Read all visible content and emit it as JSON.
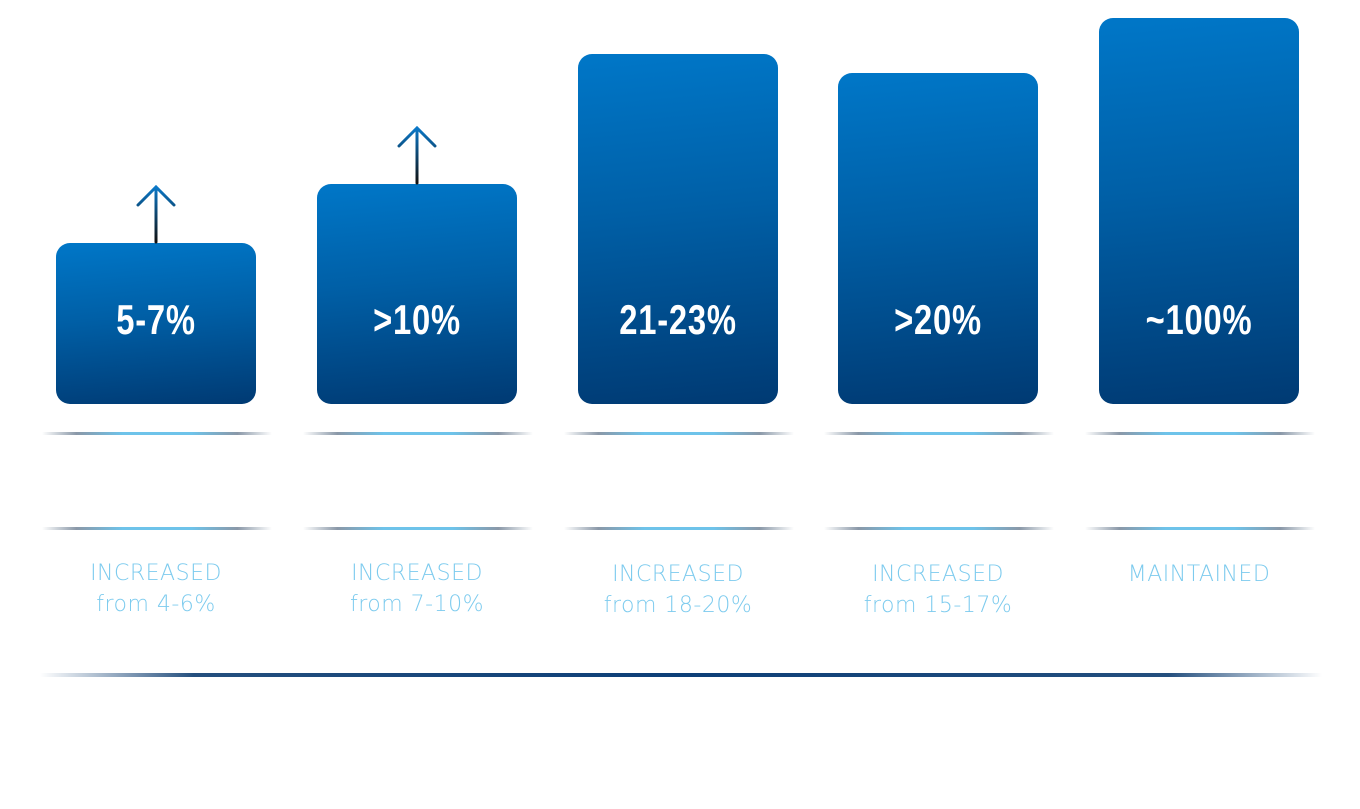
{
  "chart_data": {
    "type": "bar",
    "title": "",
    "xlabel": "",
    "ylabel": "",
    "grid": false,
    "bar_color_top": "#0077c8",
    "bar_color_bottom": "#003a73",
    "caption_color": "#7dcbee",
    "bars": [
      {
        "value_label": "5-7%",
        "status": "INCREASED",
        "detail": "from 4-6%",
        "up_arrow": true
      },
      {
        "value_label": ">10%",
        "status": "INCREASED",
        "detail": "from 7-10%",
        "up_arrow": true
      },
      {
        "value_label": "21-23%",
        "status": "INCREASED",
        "detail": "from 18-20%",
        "up_arrow": false
      },
      {
        "value_label": ">20%",
        "status": "INCREASED",
        "detail": "from 15-17%",
        "up_arrow": false
      },
      {
        "value_label": "~100%",
        "status": "MAINTAINED",
        "detail": "",
        "up_arrow": false
      }
    ]
  }
}
